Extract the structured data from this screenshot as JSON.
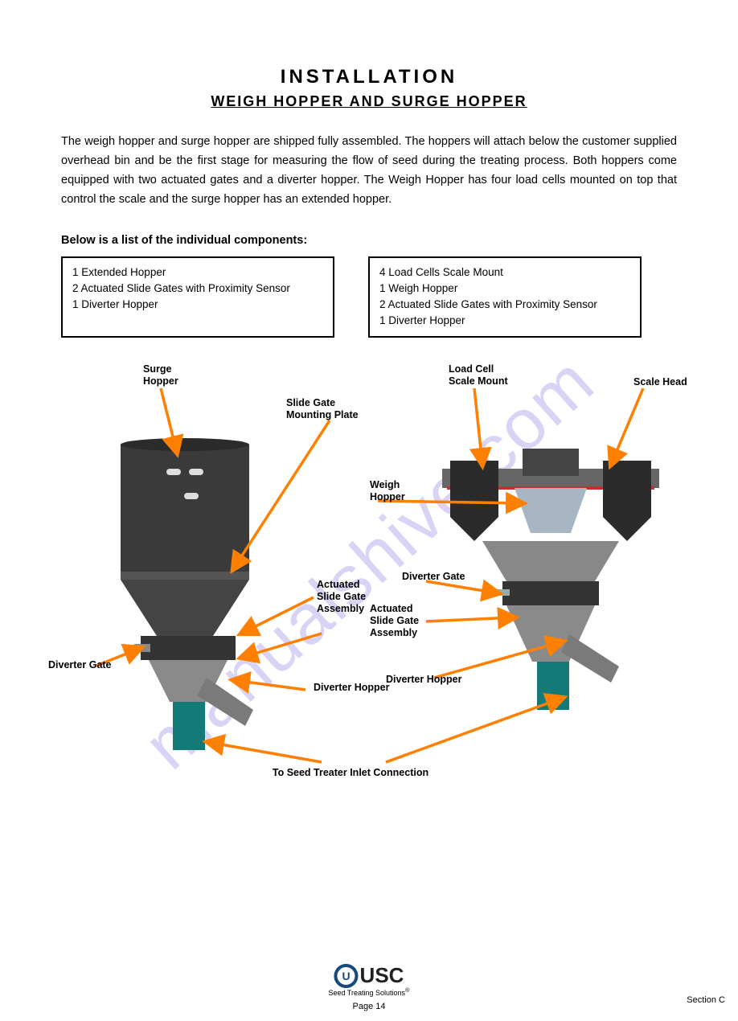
{
  "title": "INSTALLATION",
  "subtitle": "WEIGH HOPPER AND SURGE HOPPER",
  "intro": "The weigh hopper and surge hopper are shipped fully assembled. The hoppers will attach below the customer supplied overhead bin and be the first stage for measuring the flow of seed during the treating process. Both hoppers come equipped with two actuated gates and a diverter hopper. The Weigh Hopper has four load cells mounted on top that control the scale and the surge hopper has an extended hopper.",
  "section_label": "Below is a list of the individual components:",
  "box1": {
    "l1": "1 Extended Hopper",
    "l2": "2 Actuated Slide Gates with Proximity Sensor",
    "l3": "1 Diverter Hopper"
  },
  "box2": {
    "l1": "4 Load Cells Scale Mount",
    "l2": "1 Weigh Hopper",
    "l3": "2 Actuated Slide Gates with Proximity Sensor",
    "l4": "1 Diverter Hopper"
  },
  "labels": {
    "surge_hopper": "Surge\nHopper",
    "diverter_hopper1": "Diverter Hopper",
    "diverter_gate1": "Diverter Gate",
    "slide_gate1": "Actuated\nSlide Gate\nAssembly",
    "gate_plate": "Slide Gate\nMounting Plate",
    "treater_conn": "To Seed Treater Inlet Connection",
    "load_cell": "Load Cell\nScale Mount",
    "scale_head": "Scale Head",
    "weigh_hopper": "Weigh\nHopper",
    "diverter_hopper2": "Diverter Hopper",
    "diverter_gate2": "Diverter Gate",
    "slide_gate2": "Actuated\nSlide Gate\nAssembly"
  },
  "watermark": "manualshive.com",
  "footer_brand": "USC",
  "footer_tag": "Seed Treating Solutions",
  "page_num": "Page 14",
  "section_tab": "Section C",
  "colors": {
    "arrow": "#ff7f00",
    "brand": "#1a4a7a",
    "wm": "rgba(110,100,220,0.28)"
  }
}
